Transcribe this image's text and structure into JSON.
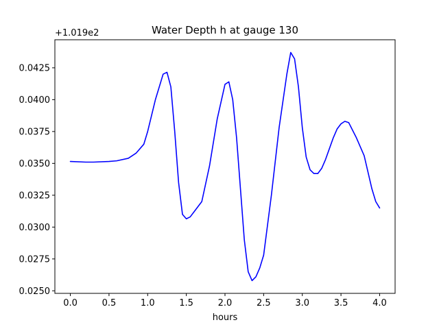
{
  "chart_data": {
    "type": "line",
    "title": "Water Depth h at gauge 130",
    "xlabel": "hours",
    "ylabel": "",
    "y_offset_label": "+1.019e2",
    "y_offset": 101.9,
    "xlim": [
      -0.2,
      4.2
    ],
    "ylim": [
      0.0248,
      0.0447
    ],
    "x_ticks": [
      0.0,
      0.5,
      1.0,
      1.5,
      2.0,
      2.5,
      3.0,
      3.5,
      4.0
    ],
    "x_tick_labels": [
      "0.0",
      "0.5",
      "1.0",
      "1.5",
      "2.0",
      "2.5",
      "3.0",
      "3.5",
      "4.0"
    ],
    "y_ticks": [
      0.025,
      0.0275,
      0.03,
      0.0325,
      0.035,
      0.0375,
      0.04,
      0.0425
    ],
    "y_tick_labels": [
      "0.0250",
      "0.0275",
      "0.0300",
      "0.0325",
      "0.0350",
      "0.0375",
      "0.0400",
      "0.0425"
    ],
    "grid": false,
    "series": [
      {
        "color": "#0000ff",
        "x": [
          0.0,
          0.2,
          0.3,
          0.5,
          0.6,
          0.75,
          0.85,
          0.95,
          1.0,
          1.1,
          1.2,
          1.25,
          1.3,
          1.35,
          1.4,
          1.45,
          1.5,
          1.55,
          1.6,
          1.7,
          1.8,
          1.9,
          2.0,
          2.05,
          2.1,
          2.15,
          2.2,
          2.25,
          2.3,
          2.35,
          2.4,
          2.45,
          2.5,
          2.6,
          2.7,
          2.8,
          2.85,
          2.9,
          2.95,
          3.0,
          3.05,
          3.1,
          3.15,
          3.2,
          3.25,
          3.3,
          3.4,
          3.45,
          3.5,
          3.55,
          3.6,
          3.65,
          3.7,
          3.8,
          3.9,
          3.95,
          4.0
        ],
        "y": [
          0.03515,
          0.0351,
          0.0351,
          0.03515,
          0.0352,
          0.0354,
          0.0358,
          0.0365,
          0.0375,
          0.04,
          0.042,
          0.04215,
          0.041,
          0.0375,
          0.0335,
          0.031,
          0.03065,
          0.0308,
          0.0312,
          0.032,
          0.0348,
          0.0385,
          0.0412,
          0.0414,
          0.04,
          0.037,
          0.033,
          0.029,
          0.0265,
          0.0258,
          0.0261,
          0.0268,
          0.0278,
          0.0325,
          0.0378,
          0.042,
          0.0437,
          0.0432,
          0.041,
          0.0378,
          0.0355,
          0.0345,
          0.0342,
          0.0342,
          0.0346,
          0.0353,
          0.037,
          0.0377,
          0.0381,
          0.0383,
          0.0382,
          0.0376,
          0.037,
          0.0356,
          0.033,
          0.032,
          0.0315
        ]
      }
    ]
  }
}
